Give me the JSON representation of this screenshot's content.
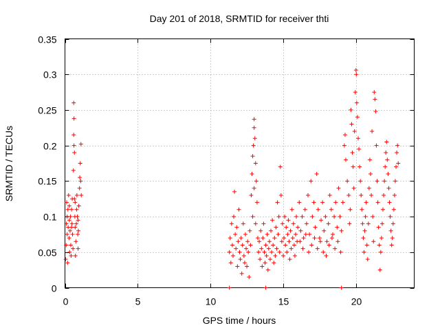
{
  "chart_data": {
    "type": "scatter",
    "title": "Day 201 of 2018, SRMTID for receiver thti",
    "xlabel": "GPS time / hours",
    "ylabel": "SRMTID / TECUs",
    "xlim": [
      0,
      24
    ],
    "ylim": [
      0,
      0.35
    ],
    "xticks": [
      0,
      5,
      10,
      15,
      20
    ],
    "yticks": [
      0,
      0.05,
      0.1,
      0.15,
      0.2,
      0.25,
      0.3,
      0.35
    ],
    "xtick_labels": [
      "0",
      "5",
      "10",
      "15",
      "20"
    ],
    "ytick_labels": [
      "0",
      "0.05",
      "0.1",
      "0.15",
      "0.2",
      "0.25",
      "0.3",
      "0.35"
    ],
    "grid": true,
    "marker": "+",
    "color": "#ff0000",
    "series": [
      {
        "name": "SRMTID",
        "points": [
          [
            0.05,
            0.04
          ],
          [
            0.08,
            0.06
          ],
          [
            0.1,
            0.09
          ],
          [
            0.12,
            0.12
          ],
          [
            0.15,
            0.075
          ],
          [
            0.18,
            0.035
          ],
          [
            0.2,
            0.11
          ],
          [
            0.22,
            0.085
          ],
          [
            0.25,
            0.13
          ],
          [
            0.28,
            0.07
          ],
          [
            0.3,
            0.095
          ],
          [
            0.32,
            0.05
          ],
          [
            0.35,
            0.08
          ],
          [
            0.38,
            0.1
          ],
          [
            0.4,
            0.06
          ],
          [
            0.42,
            0.045
          ],
          [
            0.45,
            0.11
          ],
          [
            0.48,
            0.09
          ],
          [
            0.5,
            0.125
          ],
          [
            0.52,
            0.075
          ],
          [
            0.55,
            0.055
          ],
          [
            0.58,
            0.165
          ],
          [
            0.6,
            0.215
          ],
          [
            0.6,
            0.26
          ],
          [
            0.62,
            0.238
          ],
          [
            0.62,
            0.2
          ],
          [
            0.65,
            0.19
          ],
          [
            0.65,
            0.125
          ],
          [
            0.68,
            0.1
          ],
          [
            0.7,
            0.085
          ],
          [
            0.72,
            0.045
          ],
          [
            0.75,
            0.065
          ],
          [
            0.78,
            0.09
          ],
          [
            0.8,
            0.11
          ],
          [
            0.82,
            0.13
          ],
          [
            0.85,
            0.1
          ],
          [
            0.88,
            0.075
          ],
          [
            0.9,
            0.055
          ],
          [
            0.92,
            0.08
          ],
          [
            0.95,
            0.115
          ],
          [
            1.0,
            0.14
          ],
          [
            1.02,
            0.155
          ],
          [
            1.05,
            0.175
          ],
          [
            1.08,
            0.15
          ],
          [
            1.1,
            0.202
          ],
          [
            1.12,
            0.13
          ],
          [
            0.15,
            0.1
          ],
          [
            0.3,
            0.115
          ],
          [
            0.45,
            0.085
          ],
          [
            0.7,
            0.12
          ],
          [
            0.9,
            0.095
          ],
          [
            11.3,
            0.0
          ],
          [
            13.8,
            0.0
          ],
          [
            19.0,
            0.0
          ],
          [
            11.3,
            0.05
          ],
          [
            11.35,
            0.07
          ],
          [
            11.4,
            0.035
          ],
          [
            11.45,
            0.09
          ],
          [
            11.5,
            0.06
          ],
          [
            11.55,
            0.045
          ],
          [
            11.6,
            0.1
          ],
          [
            11.65,
            0.135
          ],
          [
            11.7,
            0.075
          ],
          [
            11.75,
            0.055
          ],
          [
            11.8,
            0.085
          ],
          [
            11.85,
            0.03
          ],
          [
            11.9,
            0.065
          ],
          [
            11.95,
            0.11
          ],
          [
            12.0,
            0.05
          ],
          [
            12.05,
            0.04
          ],
          [
            12.1,
            0.07
          ],
          [
            12.15,
            0.02
          ],
          [
            12.2,
            0.06
          ],
          [
            12.25,
            0.09
          ],
          [
            12.3,
            0.045
          ],
          [
            12.35,
            0.035
          ],
          [
            12.4,
            0.075
          ],
          [
            12.45,
            0.055
          ],
          [
            12.5,
            0.03
          ],
          [
            12.55,
            0.065
          ],
          [
            12.6,
            0.05
          ],
          [
            12.65,
            0.015
          ],
          [
            12.7,
            0.08
          ],
          [
            12.75,
            0.06
          ],
          [
            12.8,
            0.13
          ],
          [
            12.85,
            0.16
          ],
          [
            12.9,
            0.185
          ],
          [
            12.95,
            0.2
          ],
          [
            13.0,
            0.225
          ],
          [
            13.0,
            0.237
          ],
          [
            13.05,
            0.21
          ],
          [
            13.1,
            0.175
          ],
          [
            13.15,
            0.15
          ],
          [
            13.2,
            0.12
          ],
          [
            12.9,
            0.1
          ],
          [
            13.0,
            0.14
          ],
          [
            13.1,
            0.09
          ],
          [
            13.25,
            0.07
          ],
          [
            13.3,
            0.05
          ],
          [
            13.35,
            0.065
          ],
          [
            13.4,
            0.04
          ],
          [
            13.45,
            0.08
          ],
          [
            13.5,
            0.055
          ],
          [
            13.55,
            0.03
          ],
          [
            13.6,
            0.07
          ],
          [
            13.65,
            0.09
          ],
          [
            13.7,
            0.05
          ],
          [
            13.75,
            0.035
          ],
          [
            13.8,
            0.06
          ],
          [
            13.85,
            0.045
          ],
          [
            13.9,
            0.075
          ],
          [
            13.95,
            0.025
          ],
          [
            14.0,
            0.055
          ],
          [
            14.05,
            0.065
          ],
          [
            14.1,
            0.04
          ],
          [
            14.15,
            0.08
          ],
          [
            14.2,
            0.05
          ],
          [
            14.25,
            0.095
          ],
          [
            14.3,
            0.06
          ],
          [
            14.35,
            0.035
          ],
          [
            14.4,
            0.07
          ],
          [
            14.45,
            0.045
          ],
          [
            14.5,
            0.085
          ],
          [
            14.55,
            0.055
          ],
          [
            14.6,
            0.12
          ],
          [
            14.65,
            0.075
          ],
          [
            14.7,
            0.1
          ],
          [
            14.75,
            0.05
          ],
          [
            14.8,
            0.17
          ],
          [
            14.85,
            0.13
          ],
          [
            14.9,
            0.065
          ],
          [
            14.95,
            0.09
          ],
          [
            15.0,
            0.045
          ],
          [
            15.05,
            0.07
          ],
          [
            15.1,
            0.1
          ],
          [
            15.15,
            0.06
          ],
          [
            15.2,
            0.085
          ],
          [
            15.25,
            0.05
          ],
          [
            15.3,
            0.075
          ],
          [
            15.35,
            0.095
          ],
          [
            15.4,
            0.065
          ],
          [
            15.45,
            0.04
          ],
          [
            15.5,
            0.08
          ],
          [
            15.55,
            0.055
          ],
          [
            15.6,
            0.11
          ],
          [
            15.65,
            0.07
          ],
          [
            15.7,
            0.09
          ],
          [
            15.75,
            0.06
          ],
          [
            15.8,
            0.045
          ],
          [
            15.85,
            0.075
          ],
          [
            15.9,
            0.1
          ],
          [
            15.95,
            0.065
          ],
          [
            16.0,
            0.085
          ],
          [
            16.1,
            0.12
          ],
          [
            16.2,
            0.08
          ],
          [
            16.3,
            0.1
          ],
          [
            16.4,
            0.07
          ],
          [
            16.5,
            0.11
          ],
          [
            16.6,
            0.09
          ],
          [
            16.7,
            0.13
          ],
          [
            16.8,
            0.075
          ],
          [
            16.9,
            0.15
          ],
          [
            17.0,
            0.1
          ],
          [
            17.1,
            0.12
          ],
          [
            17.2,
            0.085
          ],
          [
            17.3,
            0.16
          ],
          [
            17.4,
            0.11
          ],
          [
            17.5,
            0.07
          ],
          [
            17.6,
            0.095
          ],
          [
            17.7,
            0.12
          ],
          [
            17.8,
            0.08
          ],
          [
            17.9,
            0.1
          ],
          [
            18.0,
            0.065
          ],
          [
            18.1,
            0.09
          ],
          [
            18.2,
            0.13
          ],
          [
            18.3,
            0.11
          ],
          [
            18.4,
            0.075
          ],
          [
            18.5,
            0.1
          ],
          [
            18.6,
            0.12
          ],
          [
            18.7,
            0.085
          ],
          [
            18.8,
            0.14
          ],
          [
            18.9,
            0.1
          ],
          [
            19.0,
            0.08
          ],
          [
            16.15,
            0.065
          ],
          [
            16.35,
            0.055
          ],
          [
            16.55,
            0.075
          ],
          [
            16.75,
            0.05
          ],
          [
            16.95,
            0.06
          ],
          [
            17.15,
            0.07
          ],
          [
            17.35,
            0.055
          ],
          [
            17.55,
            0.065
          ],
          [
            17.75,
            0.05
          ],
          [
            17.95,
            0.045
          ],
          [
            18.15,
            0.06
          ],
          [
            18.35,
            0.07
          ],
          [
            18.55,
            0.055
          ],
          [
            18.75,
            0.065
          ],
          [
            18.95,
            0.05
          ],
          [
            19.1,
            0.12
          ],
          [
            19.2,
            0.2
          ],
          [
            19.25,
            0.215
          ],
          [
            19.3,
            0.18
          ],
          [
            19.4,
            0.15
          ],
          [
            19.5,
            0.13
          ],
          [
            19.55,
            0.09
          ],
          [
            19.6,
            0.11
          ],
          [
            19.65,
            0.25
          ],
          [
            19.7,
            0.23
          ],
          [
            19.75,
            0.19
          ],
          [
            19.8,
            0.17
          ],
          [
            19.85,
            0.14
          ],
          [
            19.9,
            0.22
          ],
          [
            19.95,
            0.275
          ],
          [
            20.0,
            0.306
          ],
          [
            20.02,
            0.3
          ],
          [
            20.05,
            0.26
          ],
          [
            20.1,
            0.24
          ],
          [
            20.15,
            0.21
          ],
          [
            20.2,
            0.195
          ],
          [
            20.25,
            0.17
          ],
          [
            20.3,
            0.15
          ],
          [
            20.35,
            0.13
          ],
          [
            20.4,
            0.11
          ],
          [
            20.45,
            0.09
          ],
          [
            20.5,
            0.07
          ],
          [
            20.55,
            0.05
          ],
          [
            20.6,
            0.08
          ],
          [
            20.65,
            0.1
          ],
          [
            20.7,
            0.12
          ],
          [
            20.75,
            0.06
          ],
          [
            20.8,
            0.04
          ],
          [
            20.85,
            0.09
          ],
          [
            20.9,
            0.14
          ],
          [
            20.95,
            0.18
          ],
          [
            21.0,
            0.16
          ],
          [
            21.05,
            0.13
          ],
          [
            21.1,
            0.22
          ],
          [
            21.15,
            0.1
          ],
          [
            21.2,
            0.065
          ],
          [
            21.25,
            0.275
          ],
          [
            21.3,
            0.265
          ],
          [
            21.35,
            0.248
          ],
          [
            21.4,
            0.2
          ],
          [
            21.45,
            0.15
          ],
          [
            21.5,
            0.12
          ],
          [
            21.55,
            0.085
          ],
          [
            21.6,
            0.06
          ],
          [
            21.65,
            0.025
          ],
          [
            21.7,
            0.05
          ],
          [
            21.75,
            0.07
          ],
          [
            21.8,
            0.09
          ],
          [
            21.85,
            0.11
          ],
          [
            21.9,
            0.13
          ],
          [
            21.95,
            0.15
          ],
          [
            22.0,
            0.17
          ],
          [
            22.05,
            0.19
          ],
          [
            22.1,
            0.205
          ],
          [
            22.15,
            0.18
          ],
          [
            22.2,
            0.16
          ],
          [
            22.25,
            0.14
          ],
          [
            22.3,
            0.12
          ],
          [
            22.35,
            0.1
          ],
          [
            22.4,
            0.08
          ],
          [
            22.45,
            0.06
          ],
          [
            22.5,
            0.07
          ],
          [
            22.55,
            0.09
          ],
          [
            22.6,
            0.11
          ],
          [
            22.65,
            0.13
          ],
          [
            22.7,
            0.15
          ],
          [
            22.75,
            0.17
          ],
          [
            22.8,
            0.19
          ],
          [
            22.85,
            0.2
          ],
          [
            22.9,
            0.175
          ]
        ]
      }
    ]
  }
}
